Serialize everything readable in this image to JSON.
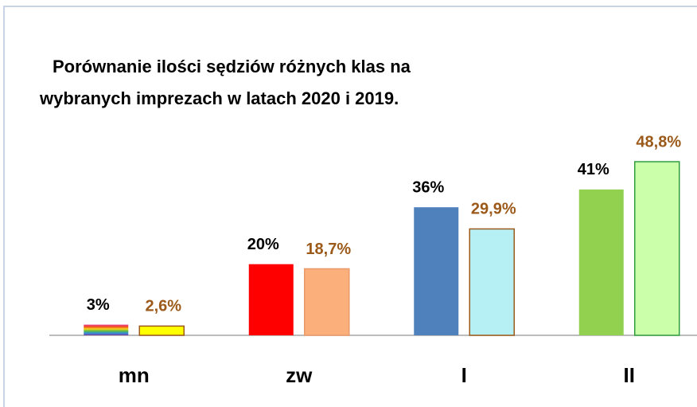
{
  "chart_data": {
    "type": "bar",
    "title": [
      "Porównanie ilości sędziów różnych klas na",
      "wybranych imprezach  w latach 2020 i 2019."
    ],
    "categories": [
      "mn",
      "zw",
      "I",
      "II"
    ],
    "series": [
      {
        "values": [
          3,
          20,
          36,
          41
        ],
        "value_labels": [
          "3%",
          "20%",
          "36%",
          "41%"
        ],
        "colors": [
          "rainbow",
          "#ff0000",
          "#4f81bd",
          "#92d050"
        ],
        "edgecolors": [
          "none",
          "none",
          "none",
          "none"
        ],
        "label_color": "#000000"
      },
      {
        "values": [
          2.6,
          18.7,
          29.9,
          48.8
        ],
        "value_labels": [
          "2,6%",
          "18,7%",
          "29,9%",
          "48,8%"
        ],
        "colors": [
          "#ffff00",
          "#fbb07c",
          "#b7f0f4",
          "#ccffaa"
        ],
        "edgecolors": [
          "#9c5a1a",
          "#e89a6a",
          "#9c5a1a",
          "#2e9e3e"
        ],
        "label_color": "#9c5a1a"
      }
    ],
    "ylim": [
      0,
      60
    ]
  }
}
